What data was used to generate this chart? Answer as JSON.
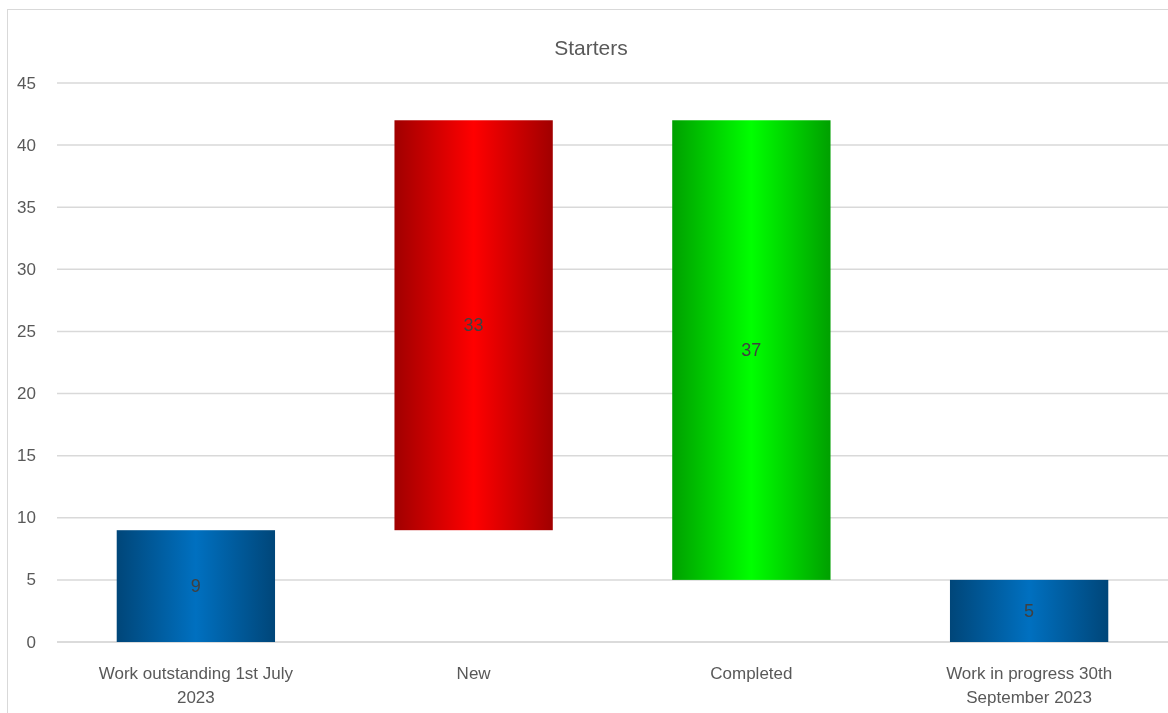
{
  "chart_data": {
    "type": "bar",
    "title": "Starters",
    "categories": [
      "Work outstanding 1st July 2023",
      "New",
      "Completed",
      "Work in progress 30th September 2023"
    ],
    "values": [
      9,
      33,
      37,
      5
    ],
    "base": [
      0,
      9,
      5,
      0
    ],
    "colors": [
      "#0070c0",
      "#ff0000",
      "#00ff00",
      "#0070c0"
    ],
    "ylim": [
      0,
      45
    ],
    "yticks": [
      0,
      5,
      10,
      15,
      20,
      25,
      30,
      35,
      40,
      45
    ],
    "grid": "y",
    "data_labels": true
  }
}
